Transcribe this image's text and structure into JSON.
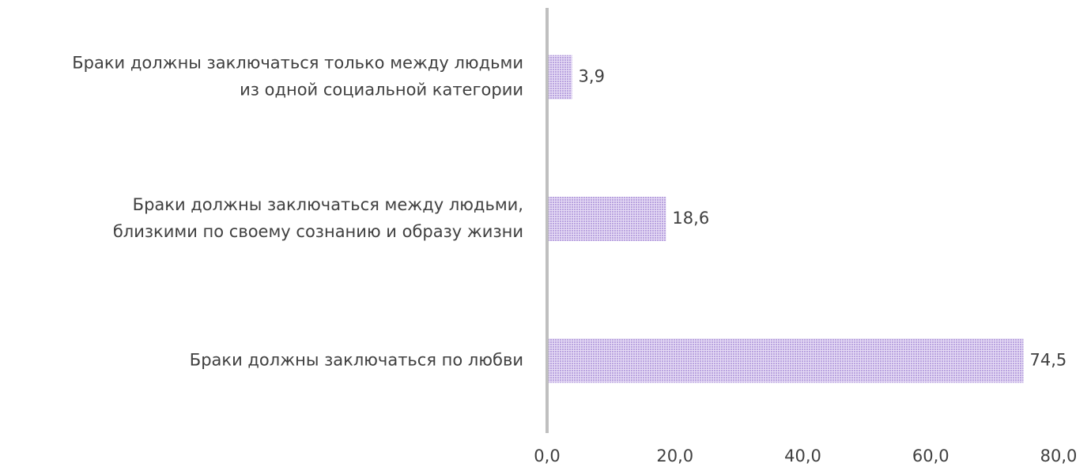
{
  "chart_data": {
    "type": "barh",
    "categories": [
      "Браки должны заключаться только между людьми\nиз одной социальной категории",
      "Браки должны заключаться между людьми,\nблизкими по своему сознанию и образу жизни",
      "Браки должны заключаться по любви"
    ],
    "values": [
      3.9,
      18.6,
      74.5
    ],
    "value_labels": [
      "3,9",
      "18,6",
      "74,5"
    ],
    "color": "#c8b6e6",
    "xlim": [
      0,
      80
    ],
    "xticks": [
      {
        "value": 0,
        "label": "0,0"
      },
      {
        "value": 20,
        "label": "20,0"
      },
      {
        "value": 40,
        "label": "40,0"
      },
      {
        "value": 60,
        "label": "60,0"
      },
      {
        "value": 80,
        "label": "80,0"
      }
    ],
    "grid": false
  }
}
